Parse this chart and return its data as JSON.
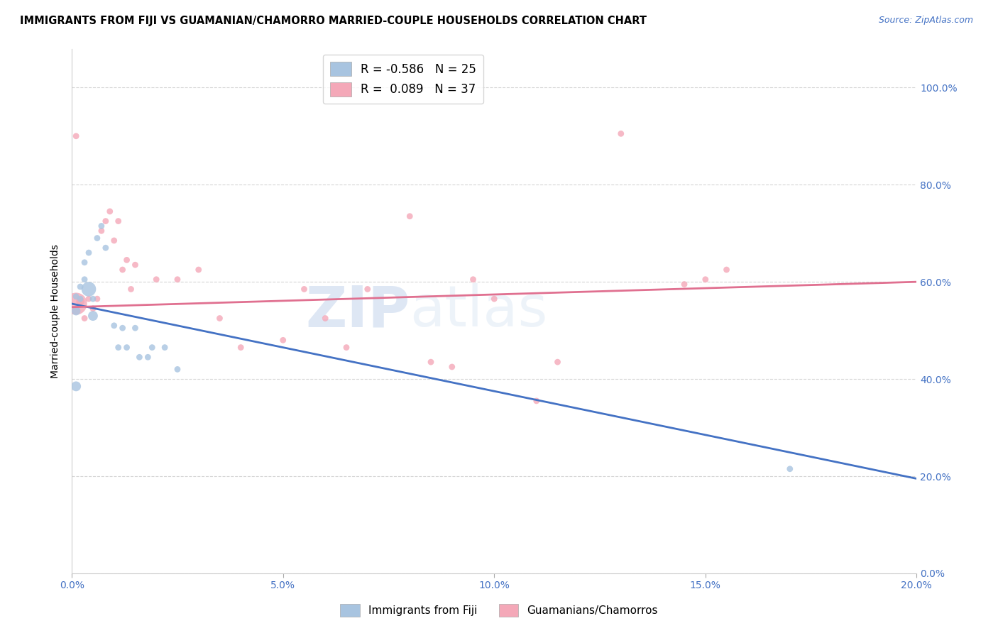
{
  "title": "IMMIGRANTS FROM FIJI VS GUAMANIAN/CHAMORRO MARRIED-COUPLE HOUSEHOLDS CORRELATION CHART",
  "source": "Source: ZipAtlas.com",
  "ylabel": "Married-couple Households",
  "xlim": [
    0.0,
    0.2
  ],
  "ylim": [
    0.0,
    1.08
  ],
  "fiji_R": -0.586,
  "fiji_N": 25,
  "guam_R": 0.089,
  "guam_N": 37,
  "fiji_color": "#a8c4e0",
  "guam_color": "#f4a8b8",
  "fiji_line_color": "#4472c4",
  "guam_line_color": "#e07090",
  "fiji_label": "Immigrants from Fiji",
  "guam_label": "Guamanians/Chamorros",
  "watermark_zip": "ZIP",
  "watermark_atlas": "atlas",
  "fiji_x": [
    0.001,
    0.001,
    0.002,
    0.002,
    0.003,
    0.003,
    0.004,
    0.004,
    0.005,
    0.005,
    0.006,
    0.007,
    0.008,
    0.01,
    0.011,
    0.012,
    0.013,
    0.015,
    0.016,
    0.018,
    0.019,
    0.022,
    0.025,
    0.17,
    0.001
  ],
  "fiji_y": [
    0.57,
    0.54,
    0.59,
    0.565,
    0.605,
    0.64,
    0.66,
    0.585,
    0.565,
    0.53,
    0.69,
    0.715,
    0.67,
    0.51,
    0.465,
    0.505,
    0.465,
    0.505,
    0.445,
    0.445,
    0.465,
    0.465,
    0.42,
    0.215,
    0.385
  ],
  "fiji_size": [
    40,
    80,
    40,
    40,
    40,
    40,
    40,
    220,
    40,
    100,
    40,
    40,
    40,
    40,
    40,
    40,
    40,
    40,
    40,
    40,
    40,
    40,
    40,
    40,
    100
  ],
  "guam_x": [
    0.001,
    0.001,
    0.002,
    0.003,
    0.004,
    0.005,
    0.006,
    0.007,
    0.008,
    0.009,
    0.01,
    0.011,
    0.012,
    0.013,
    0.014,
    0.015,
    0.02,
    0.025,
    0.03,
    0.035,
    0.04,
    0.05,
    0.055,
    0.06,
    0.065,
    0.07,
    0.08,
    0.085,
    0.09,
    0.095,
    0.1,
    0.11,
    0.115,
    0.13,
    0.145,
    0.15,
    0.155
  ],
  "guam_y": [
    0.9,
    0.555,
    0.56,
    0.525,
    0.565,
    0.545,
    0.565,
    0.705,
    0.725,
    0.745,
    0.685,
    0.725,
    0.625,
    0.645,
    0.585,
    0.635,
    0.605,
    0.605,
    0.625,
    0.525,
    0.465,
    0.48,
    0.585,
    0.525,
    0.465,
    0.585,
    0.735,
    0.435,
    0.425,
    0.605,
    0.565,
    0.355,
    0.435,
    0.905,
    0.595,
    0.605,
    0.625
  ],
  "guam_size": [
    40,
    500,
    70,
    40,
    40,
    40,
    40,
    40,
    40,
    40,
    40,
    40,
    40,
    40,
    40,
    40,
    40,
    40,
    40,
    40,
    40,
    40,
    40,
    40,
    40,
    40,
    40,
    40,
    40,
    40,
    40,
    40,
    40,
    40,
    40,
    40,
    40
  ],
  "fiji_line_x0": 0.0,
  "fiji_line_x1": 0.2,
  "fiji_line_y0": 0.555,
  "fiji_line_y1": 0.195,
  "guam_line_x0": 0.0,
  "guam_line_x1": 0.2,
  "guam_line_y0": 0.548,
  "guam_line_y1": 0.6
}
